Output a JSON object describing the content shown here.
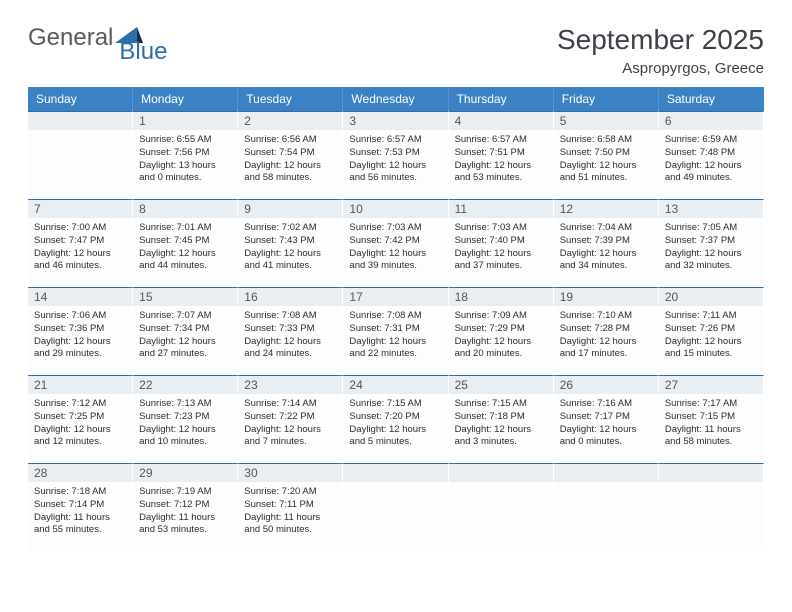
{
  "brand": {
    "general": "General",
    "blue": "Blue"
  },
  "title": "September 2025",
  "location": "Aspropyrgos, Greece",
  "colors": {
    "header_bg": "#3b82c4",
    "daynum_bg": "#e9eef3",
    "border": "#2f6fa8",
    "text": "#2c2c2c",
    "brand_gray": "#5a5a5a",
    "brand_blue": "#2f6fa8"
  },
  "daynames": [
    "Sunday",
    "Monday",
    "Tuesday",
    "Wednesday",
    "Thursday",
    "Friday",
    "Saturday"
  ],
  "start_offset": 1,
  "days": [
    {
      "n": 1,
      "sr": "6:55 AM",
      "ss": "7:56 PM",
      "dl": "13 hours and 0 minutes."
    },
    {
      "n": 2,
      "sr": "6:56 AM",
      "ss": "7:54 PM",
      "dl": "12 hours and 58 minutes."
    },
    {
      "n": 3,
      "sr": "6:57 AM",
      "ss": "7:53 PM",
      "dl": "12 hours and 56 minutes."
    },
    {
      "n": 4,
      "sr": "6:57 AM",
      "ss": "7:51 PM",
      "dl": "12 hours and 53 minutes."
    },
    {
      "n": 5,
      "sr": "6:58 AM",
      "ss": "7:50 PM",
      "dl": "12 hours and 51 minutes."
    },
    {
      "n": 6,
      "sr": "6:59 AM",
      "ss": "7:48 PM",
      "dl": "12 hours and 49 minutes."
    },
    {
      "n": 7,
      "sr": "7:00 AM",
      "ss": "7:47 PM",
      "dl": "12 hours and 46 minutes."
    },
    {
      "n": 8,
      "sr": "7:01 AM",
      "ss": "7:45 PM",
      "dl": "12 hours and 44 minutes."
    },
    {
      "n": 9,
      "sr": "7:02 AM",
      "ss": "7:43 PM",
      "dl": "12 hours and 41 minutes."
    },
    {
      "n": 10,
      "sr": "7:03 AM",
      "ss": "7:42 PM",
      "dl": "12 hours and 39 minutes."
    },
    {
      "n": 11,
      "sr": "7:03 AM",
      "ss": "7:40 PM",
      "dl": "12 hours and 37 minutes."
    },
    {
      "n": 12,
      "sr": "7:04 AM",
      "ss": "7:39 PM",
      "dl": "12 hours and 34 minutes."
    },
    {
      "n": 13,
      "sr": "7:05 AM",
      "ss": "7:37 PM",
      "dl": "12 hours and 32 minutes."
    },
    {
      "n": 14,
      "sr": "7:06 AM",
      "ss": "7:36 PM",
      "dl": "12 hours and 29 minutes."
    },
    {
      "n": 15,
      "sr": "7:07 AM",
      "ss": "7:34 PM",
      "dl": "12 hours and 27 minutes."
    },
    {
      "n": 16,
      "sr": "7:08 AM",
      "ss": "7:33 PM",
      "dl": "12 hours and 24 minutes."
    },
    {
      "n": 17,
      "sr": "7:08 AM",
      "ss": "7:31 PM",
      "dl": "12 hours and 22 minutes."
    },
    {
      "n": 18,
      "sr": "7:09 AM",
      "ss": "7:29 PM",
      "dl": "12 hours and 20 minutes."
    },
    {
      "n": 19,
      "sr": "7:10 AM",
      "ss": "7:28 PM",
      "dl": "12 hours and 17 minutes."
    },
    {
      "n": 20,
      "sr": "7:11 AM",
      "ss": "7:26 PM",
      "dl": "12 hours and 15 minutes."
    },
    {
      "n": 21,
      "sr": "7:12 AM",
      "ss": "7:25 PM",
      "dl": "12 hours and 12 minutes."
    },
    {
      "n": 22,
      "sr": "7:13 AM",
      "ss": "7:23 PM",
      "dl": "12 hours and 10 minutes."
    },
    {
      "n": 23,
      "sr": "7:14 AM",
      "ss": "7:22 PM",
      "dl": "12 hours and 7 minutes."
    },
    {
      "n": 24,
      "sr": "7:15 AM",
      "ss": "7:20 PM",
      "dl": "12 hours and 5 minutes."
    },
    {
      "n": 25,
      "sr": "7:15 AM",
      "ss": "7:18 PM",
      "dl": "12 hours and 3 minutes."
    },
    {
      "n": 26,
      "sr": "7:16 AM",
      "ss": "7:17 PM",
      "dl": "12 hours and 0 minutes."
    },
    {
      "n": 27,
      "sr": "7:17 AM",
      "ss": "7:15 PM",
      "dl": "11 hours and 58 minutes."
    },
    {
      "n": 28,
      "sr": "7:18 AM",
      "ss": "7:14 PM",
      "dl": "11 hours and 55 minutes."
    },
    {
      "n": 29,
      "sr": "7:19 AM",
      "ss": "7:12 PM",
      "dl": "11 hours and 53 minutes."
    },
    {
      "n": 30,
      "sr": "7:20 AM",
      "ss": "7:11 PM",
      "dl": "11 hours and 50 minutes."
    }
  ],
  "labels": {
    "sunrise": "Sunrise:",
    "sunset": "Sunset:",
    "daylight": "Daylight:"
  }
}
